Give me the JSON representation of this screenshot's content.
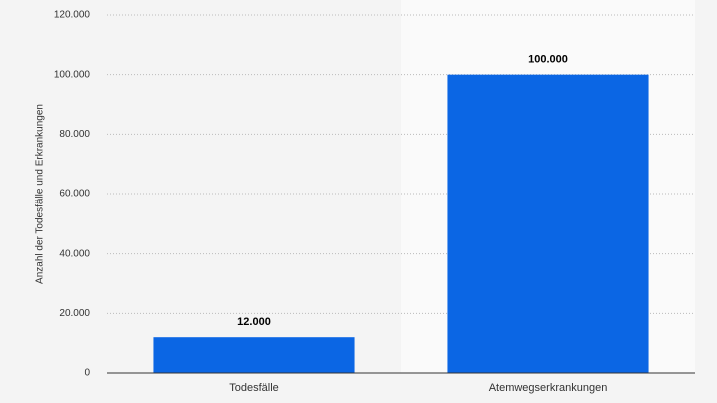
{
  "chart_data": {
    "type": "bar",
    "y_label": "Anzahl der Todesfälle und Erkrankungen",
    "categories": [
      "Todesfälle",
      "Atemwegserkrankungen"
    ],
    "values": [
      12000,
      100000
    ],
    "value_labels": [
      "12.000",
      "100.000"
    ],
    "color": "#0b66e4",
    "ylim": [
      0,
      120000
    ],
    "yticks": [
      0,
      {
        "value": 20000,
        "label": "20.000"
      },
      {
        "value": 40000,
        "label": "40.000"
      },
      {
        "value": 60000,
        "label": "60.000"
      },
      {
        "value": 80000,
        "label": "80.000"
      },
      {
        "value": 100000,
        "label": "100.000"
      },
      {
        "value": 120000,
        "label": "120.000"
      }
    ],
    "grid": true
  }
}
